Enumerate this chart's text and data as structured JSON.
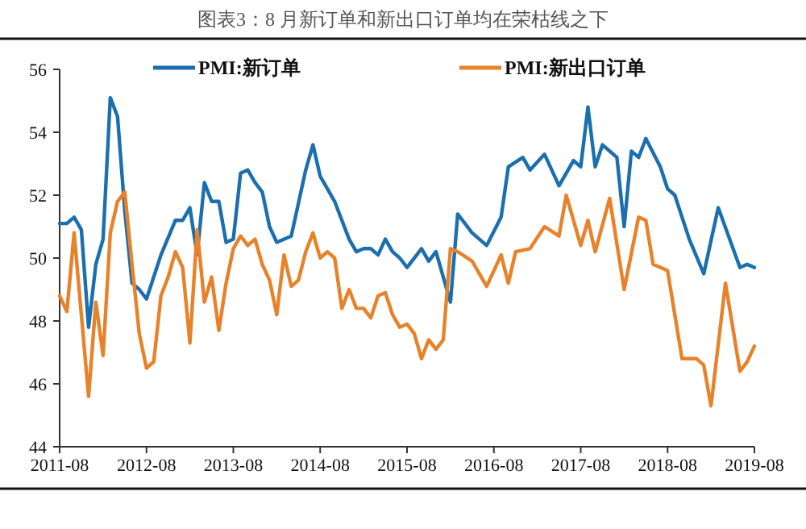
{
  "chart_data": {
    "type": "line",
    "title": "图表3：8 月新订单和新出口订单均在荣枯线之下",
    "legend": "top",
    "grid": false,
    "line_style": "solid",
    "xlim": [
      "2011-08",
      "2019-08"
    ],
    "xticks": [
      "2011-08",
      "2012-08",
      "2013-08",
      "2014-08",
      "2015-08",
      "2016-08",
      "2017-08",
      "2018-08",
      "2019-08"
    ],
    "ylim": [
      44,
      56
    ],
    "yticks": [
      44,
      46,
      48,
      50,
      52,
      54,
      56
    ],
    "series": [
      {
        "name": "PMI:新订单",
        "color": "#1b6fae",
        "x": [
          "2011-08",
          "2011-09",
          "2011-10",
          "2011-11",
          "2011-12",
          "2012-01",
          "2012-02",
          "2012-03",
          "2012-04",
          "2012-05",
          "2012-06",
          "2012-07",
          "2012-08",
          "2012-10",
          "2012-12",
          "2013-01",
          "2013-02",
          "2013-03",
          "2013-04",
          "2013-05",
          "2013-06",
          "2013-07",
          "2013-08",
          "2013-09",
          "2013-10",
          "2013-11",
          "2013-12",
          "2014-01",
          "2014-02",
          "2014-04",
          "2014-06",
          "2014-07",
          "2014-08",
          "2014-09",
          "2014-10",
          "2014-11",
          "2014-12",
          "2015-01",
          "2015-02",
          "2015-03",
          "2015-04",
          "2015-05",
          "2015-06",
          "2015-07",
          "2015-08",
          "2015-10",
          "2015-11",
          "2015-12",
          "2016-02",
          "2016-03",
          "2016-05",
          "2016-07",
          "2016-09",
          "2016-10",
          "2016-12",
          "2017-01",
          "2017-03",
          "2017-05",
          "2017-07",
          "2017-08",
          "2017-09",
          "2017-10",
          "2017-11",
          "2018-01",
          "2018-02",
          "2018-03",
          "2018-04",
          "2018-05",
          "2018-07",
          "2018-08",
          "2018-09",
          "2018-11",
          "2019-01",
          "2019-03",
          "2019-06",
          "2019-07",
          "2019-08"
        ],
        "values": [
          51.1,
          51.1,
          51.3,
          50.9,
          47.8,
          49.8,
          50.6,
          55.1,
          54.5,
          51.5,
          49.2,
          49.0,
          48.7,
          50.1,
          51.2,
          51.2,
          51.6,
          50.1,
          52.4,
          51.8,
          51.8,
          50.5,
          50.6,
          52.7,
          52.8,
          52.4,
          52.1,
          51.0,
          50.5,
          50.7,
          52.8,
          53.6,
          52.6,
          52.2,
          51.8,
          51.2,
          50.6,
          50.2,
          50.3,
          50.3,
          50.1,
          50.6,
          50.2,
          50.0,
          49.7,
          50.3,
          49.9,
          50.2,
          48.6,
          51.4,
          50.8,
          50.4,
          51.3,
          52.9,
          53.2,
          52.8,
          53.3,
          52.3,
          53.1,
          52.9,
          54.8,
          52.9,
          53.6,
          53.2,
          51.0,
          53.4,
          53.2,
          53.8,
          52.9,
          52.2,
          52.0,
          50.6,
          49.5,
          51.6,
          49.7,
          49.8,
          49.7
        ]
      },
      {
        "name": "PMI:新出口订单",
        "color": "#e8822a",
        "x": [
          "2011-08",
          "2011-09",
          "2011-10",
          "2011-11",
          "2011-12",
          "2012-01",
          "2012-02",
          "2012-03",
          "2012-04",
          "2012-05",
          "2012-06",
          "2012-07",
          "2012-08",
          "2012-09",
          "2012-10",
          "2012-11",
          "2012-12",
          "2013-01",
          "2013-02",
          "2013-03",
          "2013-04",
          "2013-05",
          "2013-06",
          "2013-07",
          "2013-08",
          "2013-09",
          "2013-10",
          "2013-11",
          "2013-12",
          "2014-01",
          "2014-02",
          "2014-03",
          "2014-04",
          "2014-05",
          "2014-06",
          "2014-07",
          "2014-08",
          "2014-09",
          "2014-10",
          "2014-11",
          "2014-12",
          "2015-01",
          "2015-02",
          "2015-03",
          "2015-04",
          "2015-05",
          "2015-06",
          "2015-07",
          "2015-08",
          "2015-09",
          "2015-10",
          "2015-11",
          "2015-12",
          "2016-01",
          "2016-02",
          "2016-03",
          "2016-05",
          "2016-07",
          "2016-09",
          "2016-10",
          "2016-11",
          "2017-01",
          "2017-03",
          "2017-05",
          "2017-06",
          "2017-08",
          "2017-09",
          "2017-10",
          "2017-12",
          "2018-02",
          "2018-04",
          "2018-05",
          "2018-06",
          "2018-08",
          "2018-10",
          "2018-12",
          "2019-01",
          "2019-02",
          "2019-04",
          "2019-06",
          "2019-07",
          "2019-08"
        ],
        "values": [
          48.8,
          48.3,
          50.8,
          48.2,
          45.6,
          48.6,
          46.9,
          50.8,
          51.8,
          52.1,
          49.8,
          47.6,
          46.5,
          46.7,
          48.8,
          49.4,
          50.2,
          49.7,
          47.3,
          50.9,
          48.6,
          49.4,
          47.7,
          49.2,
          50.3,
          50.7,
          50.4,
          50.6,
          49.8,
          49.3,
          48.2,
          50.1,
          49.1,
          49.3,
          50.2,
          50.8,
          50.0,
          50.2,
          50.0,
          48.4,
          49.0,
          48.4,
          48.4,
          48.1,
          48.8,
          48.9,
          48.2,
          47.8,
          47.9,
          47.6,
          46.8,
          47.4,
          47.1,
          47.4,
          50.3,
          50.2,
          49.9,
          49.1,
          50.1,
          49.2,
          50.2,
          50.3,
          51.0,
          50.7,
          52.0,
          50.4,
          51.2,
          50.2,
          51.9,
          49.0,
          51.3,
          51.2,
          49.8,
          49.6,
          46.8,
          46.8,
          46.6,
          45.3,
          49.2,
          46.4,
          46.7,
          47.2
        ]
      }
    ]
  }
}
